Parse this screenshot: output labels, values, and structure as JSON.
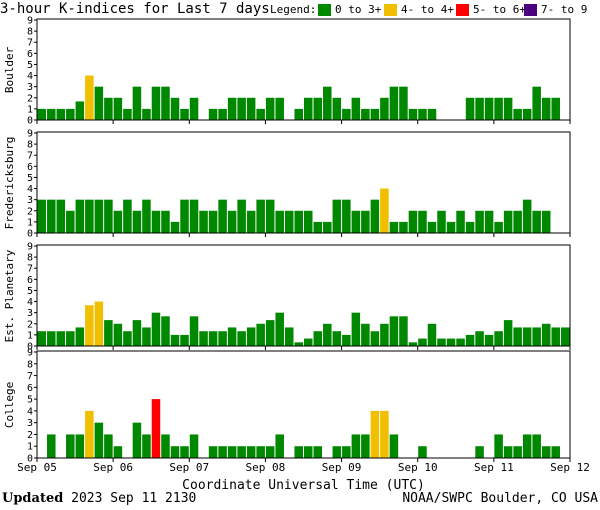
{
  "chart_data": {
    "type": "bar",
    "title": "3-hour K-indices for Last 7 days",
    "legend": {
      "label": "Legend:",
      "items": [
        {
          "label": "0 to 3+",
          "color": "#008800"
        },
        {
          "label": "4- to 4+",
          "color": "#f0c000"
        },
        {
          "label": "5- to 6+",
          "color": "#ff0000"
        },
        {
          "label": "7- to 9",
          "color": "#4b0082"
        }
      ]
    },
    "xlabel": "Coordinate Universal Time (UTC)",
    "x_ticks": [
      "Sep 05",
      "Sep 06",
      "Sep 07",
      "Sep 08",
      "Sep 09",
      "Sep 10",
      "Sep 11",
      "Sep 12"
    ],
    "ylim": [
      0,
      9
    ],
    "y_ticks": [
      "0",
      "1",
      "2",
      "3",
      "4",
      "5",
      "6",
      "7",
      "8",
      "9"
    ],
    "bins_per_day": 8,
    "panels": [
      {
        "ylabel": "Boulder",
        "values": [
          1,
          1,
          1,
          1,
          1.67,
          4,
          3,
          2,
          2,
          1,
          3,
          1,
          3,
          3,
          2,
          1,
          2,
          0,
          1,
          1,
          2,
          2,
          2,
          1,
          2,
          2,
          0,
          1,
          2,
          2,
          3,
          2,
          1,
          2,
          1,
          1,
          2,
          3,
          3,
          1,
          1,
          1,
          0,
          0,
          0,
          2,
          2,
          2,
          2,
          2,
          1,
          1,
          3,
          2,
          2,
          0
        ]
      },
      {
        "ylabel": "Fredericksburg",
        "values": [
          3,
          3,
          3,
          2,
          3,
          3,
          3,
          3,
          2,
          3,
          2,
          3,
          2,
          2,
          1,
          3,
          3,
          2,
          2,
          3,
          2,
          3,
          2,
          3,
          3,
          2,
          2,
          2,
          2,
          1,
          1,
          3,
          3,
          2,
          2,
          3,
          4,
          1,
          1,
          2,
          2,
          1,
          2,
          1,
          2,
          1,
          2,
          2,
          1,
          2,
          2,
          3,
          2,
          2,
          0
        ]
      },
      {
        "ylabel": "Est. Planetary",
        "values": [
          1.33,
          1.33,
          1.33,
          1.33,
          1.67,
          3.67,
          4,
          2.33,
          2,
          1.33,
          2.33,
          1.67,
          3,
          2.67,
          1,
          1,
          2.67,
          1.33,
          1.33,
          1.33,
          1.67,
          1.33,
          1.67,
          2,
          2.33,
          3,
          1.67,
          0.33,
          0.67,
          1.33,
          2,
          1.33,
          1,
          3,
          2,
          1.33,
          2,
          2.67,
          2.67,
          0.33,
          0.67,
          2,
          0.67,
          0.67,
          0.67,
          1,
          1.33,
          1,
          1.33,
          2.33,
          1.67,
          1.67,
          1.67,
          2,
          1.67,
          1.67
        ]
      },
      {
        "ylabel": "College",
        "values": [
          0,
          2,
          0,
          2,
          2,
          4,
          3,
          2,
          1,
          0,
          3,
          2,
          5,
          2,
          1,
          1,
          2,
          0,
          1,
          1,
          1,
          1,
          1,
          1,
          1,
          2,
          0,
          1,
          1,
          1,
          0,
          1,
          1,
          2,
          2,
          4,
          4,
          2,
          0,
          0,
          1,
          0,
          0,
          0,
          0,
          0,
          1,
          0,
          2,
          1,
          1,
          2,
          2,
          1,
          1,
          0
        ]
      }
    ]
  },
  "footer": {
    "updated_label": "Updated",
    "updated_value": "2023 Sep 11 2130",
    "credit": "NOAA/SWPC Boulder, CO USA"
  }
}
